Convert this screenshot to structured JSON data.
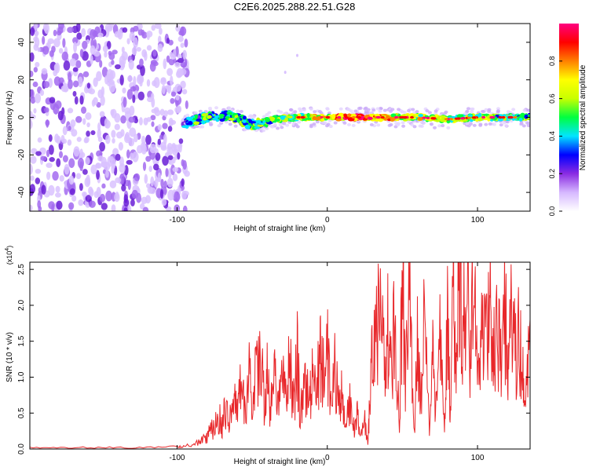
{
  "title": "C2E6.2025.288.22.51.G28",
  "chart_data": [
    {
      "type": "heatmap",
      "xlabel": "Height of straight line (km)",
      "ylabel": "Frequency (Hz)",
      "xlim": [
        -198,
        135
      ],
      "ylim": [
        -50,
        50
      ],
      "xticks": [
        -100,
        0,
        100
      ],
      "xtick_labels": [
        "-100",
        "0",
        "100"
      ],
      "yticks": [
        -40,
        -20,
        0,
        20,
        40
      ],
      "ytick_labels": [
        "-40",
        "-20",
        "0",
        "20",
        "40"
      ],
      "colorbar": {
        "label": "Normalized spectral amplitude",
        "range": [
          0,
          1
        ],
        "ticks": [
          0.0,
          0.2,
          0.4,
          0.6,
          0.8
        ],
        "tick_labels": [
          "0.0",
          "0.2",
          "0.4",
          "0.6",
          "0.8"
        ],
        "colors": [
          "#ffffff",
          "#d6b8ff",
          "#8a2be2",
          "#0000ff",
          "#00e5ff",
          "#00ff40",
          "#c8ff00",
          "#ffff00",
          "#ff8000",
          "#ff0000",
          "#ff0080"
        ]
      },
      "noise_region": {
        "x_range": [
          -198,
          -93
        ],
        "freq_range": [
          -50,
          50
        ],
        "level": 0.05
      },
      "signal_track": [
        {
          "x": -95,
          "freq": -3,
          "level": 0.35
        },
        {
          "x": -80,
          "freq": 0,
          "level": 0.45
        },
        {
          "x": -65,
          "freq": 1,
          "level": 0.45
        },
        {
          "x": -50,
          "freq": -4,
          "level": 0.4
        },
        {
          "x": -35,
          "freq": -1,
          "level": 0.5
        },
        {
          "x": -20,
          "freq": 0,
          "level": 0.55
        },
        {
          "x": 0,
          "freq": 0,
          "level": 0.7
        },
        {
          "x": 20,
          "freq": 0,
          "level": 0.85
        },
        {
          "x": 40,
          "freq": 0,
          "level": 0.7
        },
        {
          "x": 60,
          "freq": 0,
          "level": 0.6
        },
        {
          "x": 80,
          "freq": -1,
          "level": 0.55
        },
        {
          "x": 100,
          "freq": 0,
          "level": 0.55
        },
        {
          "x": 120,
          "freq": 0,
          "level": 0.5
        },
        {
          "x": 135,
          "freq": 0,
          "level": 0.5
        }
      ],
      "sparse_points": [
        {
          "x": -20,
          "freq": 33,
          "level": 0.08
        },
        {
          "x": -28,
          "freq": 24,
          "level": 0.08
        }
      ]
    },
    {
      "type": "line",
      "xlabel": "Height of straight line (km)",
      "ylabel": "SNR (10 * v/v)",
      "yscale_label": "(x10",
      "yscale_exp": "4",
      "xlim": [
        -198,
        135
      ],
      "ylim": [
        0,
        2.6
      ],
      "xticks": [
        -100,
        0,
        100
      ],
      "xtick_labels": [
        "-100",
        "0",
        "100"
      ],
      "yticks": [
        0.0,
        0.5,
        1.0,
        1.5,
        2.0,
        2.5
      ],
      "ytick_labels": [
        "0.0",
        "0.5",
        "1.0",
        "1.5",
        "2.0",
        "2.5"
      ],
      "series": [
        {
          "name": "SNR",
          "color": "#e8272a",
          "x": [
            -198,
            -180,
            -160,
            -140,
            -120,
            -100,
            -95,
            -90,
            -85,
            -82,
            -80,
            -78,
            -75,
            -72,
            -70,
            -68,
            -65,
            -62,
            -60,
            -58,
            -55,
            -52,
            -50,
            -48,
            -45,
            -42,
            -40,
            -38,
            -35,
            -33,
            -30,
            -28,
            -25,
            -22,
            -20,
            -18,
            -15,
            -12,
            -10,
            -8,
            -5,
            -3,
            0,
            2,
            5,
            8,
            10,
            12,
            15,
            18,
            20,
            22,
            25,
            27,
            28,
            30,
            32,
            35,
            38,
            40,
            42,
            45,
            48,
            50,
            52,
            55,
            58,
            60,
            62,
            65,
            68,
            70,
            72,
            75,
            78,
            80,
            82,
            84,
            86,
            88,
            90,
            92,
            95,
            98,
            100,
            102,
            105,
            108,
            110,
            112,
            115,
            118,
            120,
            122,
            125,
            128,
            130,
            132,
            135
          ],
          "y": [
            0.02,
            0.02,
            0.02,
            0.02,
            0.02,
            0.03,
            0.04,
            0.06,
            0.1,
            0.18,
            0.15,
            0.25,
            0.3,
            0.45,
            0.3,
            0.55,
            0.4,
            0.72,
            0.5,
            0.85,
            0.6,
            1.05,
            0.5,
            0.95,
            1.42,
            0.7,
            1.1,
            0.5,
            0.95,
            0.6,
            1.0,
            0.7,
            1.25,
            0.6,
            1.3,
            0.45,
            1.1,
            0.55,
            1.2,
            0.7,
            1.3,
            0.95,
            1.4,
            0.65,
            1.15,
            0.55,
            0.8,
            0.3,
            0.6,
            0.25,
            0.45,
            0.15,
            0.35,
            0.05,
            0.55,
            1.65,
            1.35,
            1.9,
            1.2,
            2.0,
            1.0,
            1.8,
            0.4,
            2.45,
            0.9,
            2.15,
            0.2,
            1.6,
            0.7,
            2.2,
            0.3,
            2.0,
            0.5,
            1.7,
            0.15,
            1.9,
            0.4,
            2.55,
            1.0,
            2.5,
            1.3,
            2.2,
            1.55,
            2.05,
            1.1,
            1.8,
            1.5,
            1.95,
            1.25,
            1.65,
            1.45,
            1.95,
            1.3,
            1.75,
            1.4,
            1.6,
            1.1,
            0.8,
            1.8
          ]
        }
      ]
    }
  ]
}
